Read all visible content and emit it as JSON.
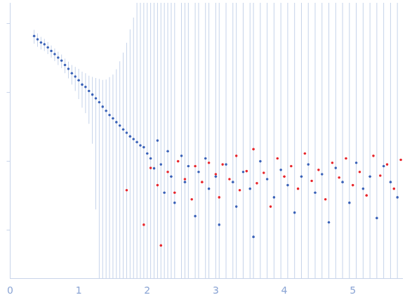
{
  "chart_data": {
    "type": "scatter",
    "log": "y",
    "grid": false,
    "tick_labels": "x",
    "xlim": [
      0,
      5.72
    ],
    "xticks": [
      0,
      1,
      2,
      3,
      4,
      5
    ],
    "ylim": [
      0.0002,
      2
    ],
    "yticks": [
      0.001,
      0.01,
      0.1,
      1
    ],
    "series": [
      {
        "color": "#3a62b8",
        "marker": "circle",
        "x": [
          0.35,
          0.4,
          0.45,
          0.5,
          0.55,
          0.6,
          0.65,
          0.7,
          0.75,
          0.8,
          0.85,
          0.9,
          0.95,
          1.0,
          1.05,
          1.1,
          1.15,
          1.2,
          1.25,
          1.3,
          1.35,
          1.4,
          1.45,
          1.5,
          1.55,
          1.6,
          1.65,
          1.7,
          1.75,
          1.8,
          1.85,
          1.9,
          1.95,
          2.0,
          2.05,
          2.1,
          2.15,
          2.2,
          2.25,
          2.3,
          2.35,
          2.4,
          2.5,
          2.55,
          2.6,
          2.7,
          2.75,
          2.85,
          2.9,
          3.0,
          3.05,
          3.15,
          3.25,
          3.3,
          3.4,
          3.5,
          3.55,
          3.65,
          3.75,
          3.85,
          3.95,
          4.05,
          4.15,
          4.25,
          4.35,
          4.45,
          4.55,
          4.65,
          4.75,
          4.85,
          4.95,
          5.05,
          5.15,
          5.25,
          5.35,
          5.45,
          5.55,
          5.65
        ],
        "values": [
          0.66,
          0.59,
          0.53,
          0.5,
          0.45,
          0.4,
          0.36,
          0.32,
          0.29,
          0.25,
          0.22,
          0.19,
          0.17,
          0.15,
          0.13,
          0.12,
          0.105,
          0.093,
          0.082,
          0.072,
          0.062,
          0.054,
          0.047,
          0.042,
          0.037,
          0.033,
          0.029,
          0.026,
          0.023,
          0.021,
          0.019,
          0.017,
          0.016,
          0.013,
          0.011,
          0.0079,
          0.02,
          0.009,
          0.0035,
          0.014,
          0.006,
          0.0025,
          0.012,
          0.005,
          0.0085,
          0.0016,
          0.007,
          0.011,
          0.004,
          0.006,
          0.0012,
          0.009,
          0.005,
          0.0022,
          0.007,
          0.004,
          0.0008,
          0.01,
          0.0055,
          0.003,
          0.0075,
          0.0045,
          0.0018,
          0.006,
          0.009,
          0.0035,
          0.0065,
          0.0013,
          0.008,
          0.005,
          0.0025,
          0.0095,
          0.004,
          0.006,
          0.0015,
          0.0085,
          0.005,
          0.003
        ],
        "errors": [
          0.15,
          0.13,
          0.11,
          0.1,
          0.09,
          0.08,
          0.075,
          0.07,
          0.065,
          0.06,
          0.06,
          0.06,
          0.065,
          0.07,
          0.07,
          0.07,
          0.07,
          0.075,
          0.08,
          0.085,
          0.09,
          0.1,
          0.12,
          0.14,
          0.18,
          0.25,
          0.35,
          0.5,
          0.8,
          1.2,
          2,
          3,
          3,
          3,
          3,
          3,
          3,
          3,
          3,
          3,
          3,
          3,
          3,
          3,
          3,
          3,
          3,
          3,
          3,
          3,
          3,
          3,
          3,
          3,
          3,
          3,
          3,
          3,
          3,
          3,
          3,
          3,
          3,
          3,
          3,
          3,
          3,
          3,
          3,
          3,
          3,
          3,
          3,
          3,
          3,
          3,
          3,
          3
        ]
      },
      {
        "color": "#e8262c",
        "marker": "circle",
        "x": [
          1.7,
          1.95,
          2.05,
          2.15,
          2.2,
          2.3,
          2.4,
          2.45,
          2.55,
          2.65,
          2.7,
          2.8,
          2.9,
          3.0,
          3.05,
          3.1,
          3.2,
          3.3,
          3.35,
          3.45,
          3.55,
          3.6,
          3.7,
          3.8,
          3.9,
          4.0,
          4.1,
          4.2,
          4.3,
          4.4,
          4.5,
          4.6,
          4.7,
          4.8,
          4.9,
          5.0,
          5.1,
          5.2,
          5.3,
          5.4,
          5.5,
          5.6,
          5.7
        ],
        "values": [
          0.0038,
          0.0012,
          0.008,
          0.0045,
          0.0006,
          0.007,
          0.0035,
          0.01,
          0.0055,
          0.0028,
          0.0085,
          0.005,
          0.0095,
          0.0065,
          0.003,
          0.009,
          0.0055,
          0.012,
          0.0038,
          0.0072,
          0.015,
          0.0048,
          0.0068,
          0.0022,
          0.011,
          0.006,
          0.0085,
          0.004,
          0.013,
          0.0052,
          0.0075,
          0.0028,
          0.0095,
          0.0058,
          0.011,
          0.0045,
          0.007,
          0.0032,
          0.012,
          0.0062,
          0.009,
          0.004,
          0.0105
        ]
      }
    ]
  }
}
